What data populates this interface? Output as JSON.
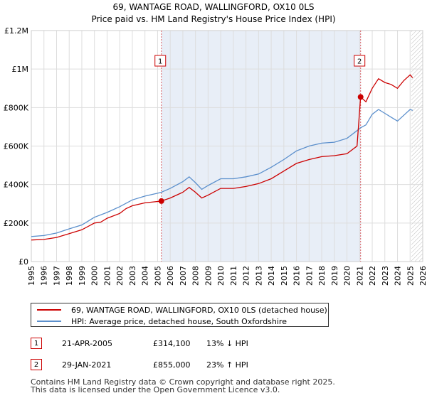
{
  "colors": {
    "price": "#cc0000",
    "hpi": "#5b8fcc",
    "grid": "#dddddd",
    "shade": "#e8eef7"
  },
  "chart_data": {
    "type": "line",
    "title": "69, WANTAGE ROAD, WALLINGFORD, OX10 0LS",
    "subtitle": "Price paid vs. HM Land Registry's House Price Index (HPI)",
    "xlim": [
      1995,
      2026
    ],
    "ylim": [
      0,
      1200000
    ],
    "x_ticks": [
      "1995",
      "1996",
      "1997",
      "1998",
      "1999",
      "2000",
      "2001",
      "2002",
      "2003",
      "2004",
      "2005",
      "2006",
      "2007",
      "2008",
      "2009",
      "2010",
      "2011",
      "2012",
      "2013",
      "2014",
      "2015",
      "2016",
      "2017",
      "2018",
      "2019",
      "2020",
      "2021",
      "2022",
      "2023",
      "2024",
      "2025",
      "2026"
    ],
    "y_ticks": [
      {
        "value": 0,
        "label": "£0"
      },
      {
        "value": 200000,
        "label": "£200K"
      },
      {
        "value": 400000,
        "label": "£400K"
      },
      {
        "value": 600000,
        "label": "£600K"
      },
      {
        "value": 800000,
        "label": "£800K"
      },
      {
        "value": 1000000,
        "label": "£1M"
      },
      {
        "value": 1200000,
        "label": "£1.2M"
      }
    ],
    "shaded_range": [
      2005.3,
      2021.08
    ],
    "hatched_from": 2025.1,
    "series": [
      {
        "name": "69, WANTAGE ROAD, WALLINGFORD, OX10 0LS (detached house)",
        "color": "#cc0000",
        "points": [
          [
            1995,
            112000
          ],
          [
            1996,
            115000
          ],
          [
            1997,
            125000
          ],
          [
            1998,
            145000
          ],
          [
            1999,
            165000
          ],
          [
            2000,
            200000
          ],
          [
            2000.5,
            205000
          ],
          [
            2001,
            225000
          ],
          [
            2002,
            250000
          ],
          [
            2002.5,
            275000
          ],
          [
            2003,
            290000
          ],
          [
            2004,
            305000
          ],
          [
            2005,
            312000
          ],
          [
            2005.3,
            314100
          ],
          [
            2006,
            330000
          ],
          [
            2007,
            360000
          ],
          [
            2007.5,
            385000
          ],
          [
            2008,
            360000
          ],
          [
            2008.5,
            330000
          ],
          [
            2009,
            345000
          ],
          [
            2010,
            380000
          ],
          [
            2011,
            380000
          ],
          [
            2012,
            390000
          ],
          [
            2013,
            405000
          ],
          [
            2014,
            430000
          ],
          [
            2015,
            470000
          ],
          [
            2016,
            510000
          ],
          [
            2017,
            530000
          ],
          [
            2018,
            545000
          ],
          [
            2019,
            550000
          ],
          [
            2020,
            560000
          ],
          [
            2020.8,
            600000
          ],
          [
            2021.08,
            855000
          ],
          [
            2021.5,
            830000
          ],
          [
            2022,
            900000
          ],
          [
            2022.5,
            950000
          ],
          [
            2023,
            930000
          ],
          [
            2023.5,
            920000
          ],
          [
            2024,
            900000
          ],
          [
            2024.5,
            940000
          ],
          [
            2025,
            970000
          ],
          [
            2025.2,
            955000
          ]
        ]
      },
      {
        "name": "HPI: Average price, detached house, South Oxfordshire",
        "color": "#5b8fcc",
        "points": [
          [
            1995,
            130000
          ],
          [
            1996,
            135000
          ],
          [
            1997,
            148000
          ],
          [
            1998,
            170000
          ],
          [
            1999,
            190000
          ],
          [
            2000,
            230000
          ],
          [
            2001,
            255000
          ],
          [
            2002,
            285000
          ],
          [
            2003,
            320000
          ],
          [
            2004,
            340000
          ],
          [
            2005,
            355000
          ],
          [
            2005.3,
            360000
          ],
          [
            2006,
            380000
          ],
          [
            2007,
            415000
          ],
          [
            2007.5,
            440000
          ],
          [
            2008,
            410000
          ],
          [
            2008.5,
            375000
          ],
          [
            2009,
            395000
          ],
          [
            2010,
            430000
          ],
          [
            2011,
            430000
          ],
          [
            2012,
            440000
          ],
          [
            2013,
            455000
          ],
          [
            2014,
            490000
          ],
          [
            2015,
            530000
          ],
          [
            2016,
            575000
          ],
          [
            2017,
            600000
          ],
          [
            2018,
            615000
          ],
          [
            2019,
            620000
          ],
          [
            2020,
            640000
          ],
          [
            2020.8,
            680000
          ],
          [
            2021.08,
            695000
          ],
          [
            2021.5,
            710000
          ],
          [
            2022,
            765000
          ],
          [
            2022.5,
            790000
          ],
          [
            2023,
            770000
          ],
          [
            2023.5,
            750000
          ],
          [
            2024,
            730000
          ],
          [
            2024.5,
            760000
          ],
          [
            2025,
            790000
          ],
          [
            2025.2,
            785000
          ]
        ]
      }
    ],
    "markers": [
      {
        "label": "1",
        "x": 2005.3,
        "y": 314100
      },
      {
        "label": "2",
        "x": 2021.08,
        "y": 855000
      }
    ]
  },
  "legend": {
    "price_label": "69, WANTAGE ROAD, WALLINGFORD, OX10 0LS (detached house)",
    "hpi_label": "HPI: Average price, detached house, South Oxfordshire"
  },
  "transactions": [
    {
      "num": "1",
      "date": "21-APR-2005",
      "price": "£314,100",
      "hpi": "13% ↓ HPI"
    },
    {
      "num": "2",
      "date": "29-JAN-2021",
      "price": "£855,000",
      "hpi": "23% ↑ HPI"
    }
  ],
  "footer": {
    "line1": "Contains HM Land Registry data © Crown copyright and database right 2025.",
    "line2": "This data is licensed under the Open Government Licence v3.0."
  }
}
